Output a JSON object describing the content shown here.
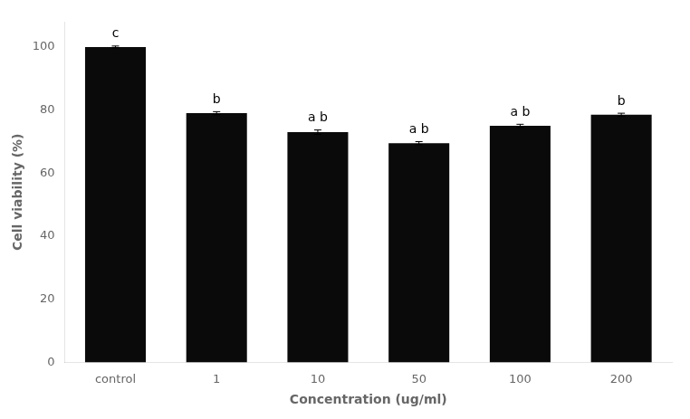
{
  "chart_data": {
    "type": "bar",
    "categories": [
      "control",
      "1",
      "10",
      "50",
      "100",
      "200"
    ],
    "values": [
      100.0,
      79.0,
      73.0,
      69.5,
      75.0,
      78.5
    ],
    "errors": [
      0.3,
      0.5,
      0.7,
      0.5,
      0.5,
      0.5
    ],
    "color": "#0a0a0a",
    "xlabel": "Concentration (ug/ml)",
    "ylabel": "Cell viability (%)",
    "ylim": [
      0,
      108
    ],
    "yticks": [
      0,
      20,
      40,
      60,
      80,
      100
    ],
    "grid": false,
    "annotations": [
      "c",
      "b",
      "a b",
      "a b",
      "a b",
      "b"
    ]
  }
}
